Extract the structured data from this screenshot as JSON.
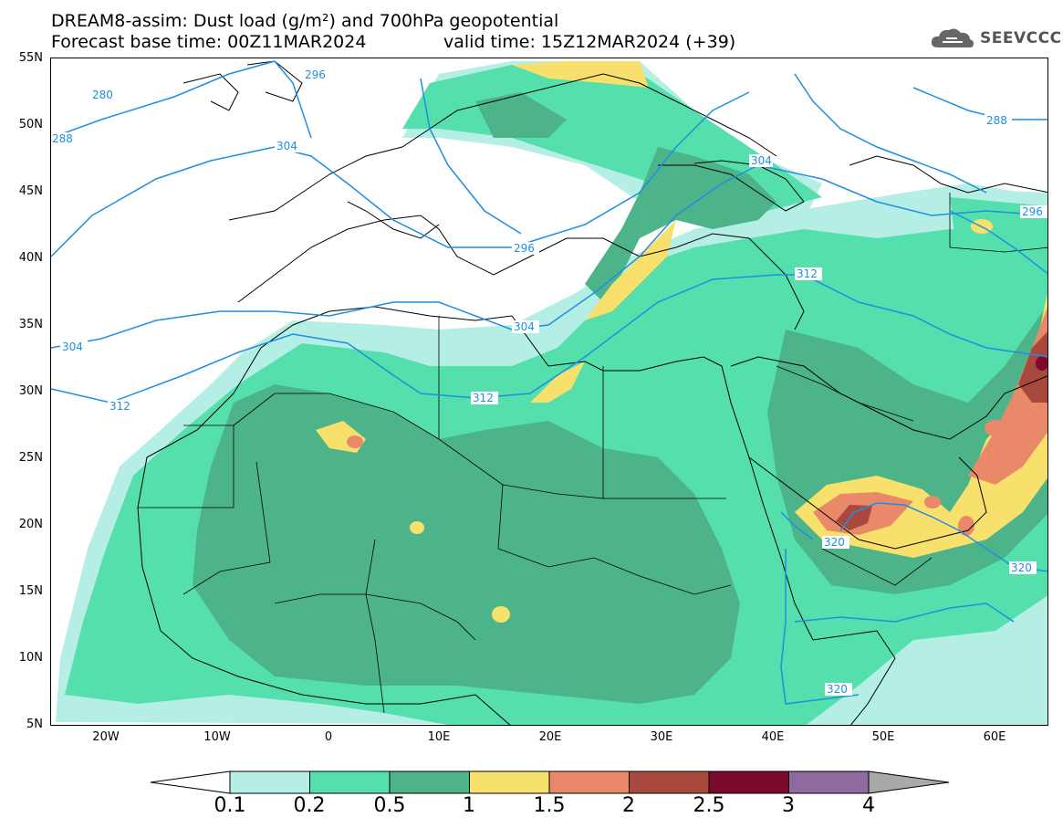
{
  "header": {
    "title_line1": "DREAM8-assim: Dust load (g/m²) and 700hPa geopotential",
    "title_line2": "Forecast base time: 00Z11MAR2024",
    "valid_time": "valid time: 15Z12MAR2024 (+39)"
  },
  "logo": {
    "text": "SEEVCCC",
    "icon": "cloud-logo-icon"
  },
  "axes": {
    "lat_labels": [
      "55N",
      "50N",
      "45N",
      "40N",
      "35N",
      "30N",
      "25N",
      "20N",
      "15N",
      "10N",
      "5N"
    ],
    "lon_labels": [
      "20W",
      "10W",
      "0",
      "10E",
      "20E",
      "30E",
      "40E",
      "50E",
      "60E"
    ]
  },
  "contour_labels": [
    "280",
    "288",
    "296",
    "304",
    "296",
    "304",
    "312",
    "312",
    "304",
    "312",
    "320",
    "320",
    "320",
    "288",
    "296"
  ],
  "colorbar": {
    "labels": [
      "0.1",
      "0.2",
      "0.5",
      "1",
      "1.5",
      "2",
      "2.5",
      "3",
      "4"
    ],
    "colors": [
      "#b4eee4",
      "#55dfac",
      "#4db48a",
      "#f7e06c",
      "#e9896a",
      "#a9483d",
      "#7c0a2c",
      "#8e6aa0"
    ],
    "under_color": "#ffffff",
    "over_color": "#a9a9a9"
  },
  "colors": {
    "contour": "#1f8fe0",
    "dust_lightest": "#b4eee4",
    "dust_light": "#55dfac",
    "dust_mid": "#4db48a",
    "dust_yellow": "#f7e06c",
    "dust_orange": "#e9896a",
    "dust_red": "#a9483d",
    "dust_darkred": "#7c0a2c"
  }
}
